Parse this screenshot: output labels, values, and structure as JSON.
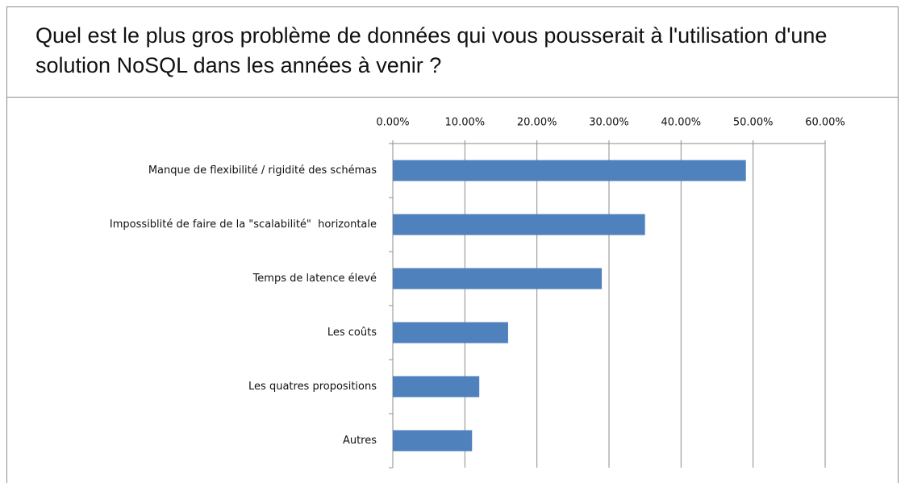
{
  "chart_data": {
    "type": "bar",
    "orientation": "horizontal",
    "title": "Quel est le plus gros problème de données qui vous pousserait à l'utilisation d'une solution NoSQL dans les années à venir ?",
    "categories": [
      "Manque de flexibilité / rigidité des schémas",
      "Impossiblité de faire de la \"scalabilité\"  horizontale",
      "Temps de latence élevé",
      "Les coûts",
      "Les quatres propositions",
      "Autres"
    ],
    "values": [
      49,
      35,
      29,
      16,
      12,
      11
    ],
    "color": "#4f81bd",
    "xlim": [
      0,
      60
    ],
    "xticks": [
      {
        "value": 0,
        "label": "0.00%"
      },
      {
        "value": 10,
        "label": "10.00%"
      },
      {
        "value": 20,
        "label": "20.00%"
      },
      {
        "value": 30,
        "label": "30.00%"
      },
      {
        "value": 40,
        "label": "40.00%"
      },
      {
        "value": 50,
        "label": "50.00%"
      },
      {
        "value": 60,
        "label": "60.00%"
      }
    ],
    "grid": true
  }
}
